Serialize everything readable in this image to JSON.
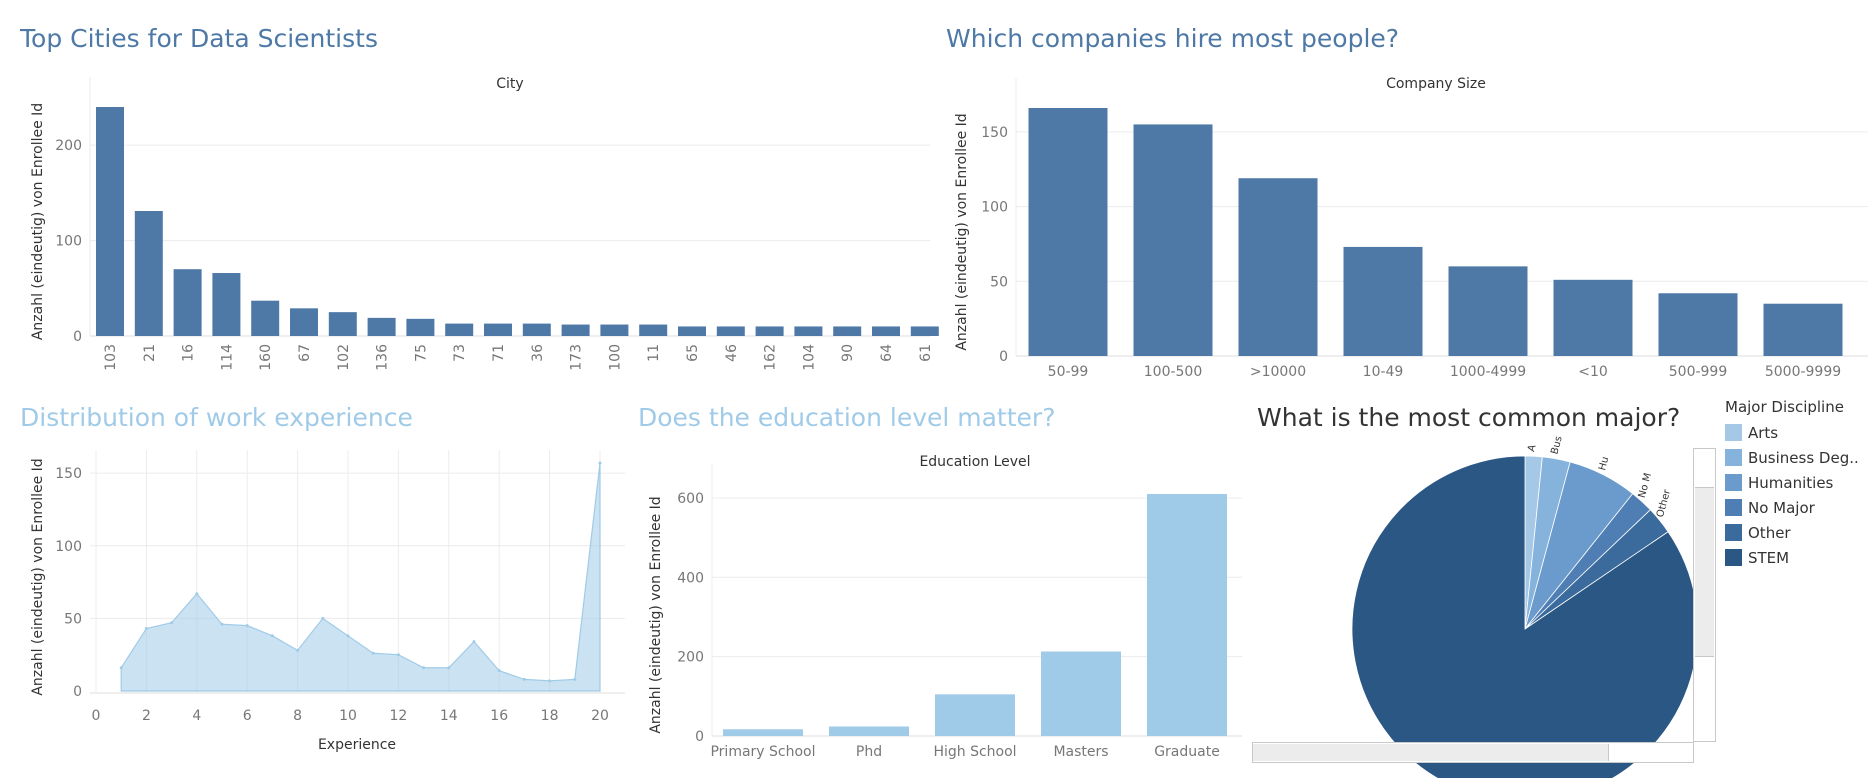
{
  "titles": {
    "cities": "Top Cities for Data Scientists",
    "companies": "Which companies hire most people?",
    "experience": "Distribution of work experience",
    "education": "Does the education level matter?",
    "major": "What is the most common major?"
  },
  "colors": {
    "dark_blue": "#4e79a7",
    "light_blue": "#a0cbe8",
    "grid": "#ececec",
    "axis_text": "#777777"
  },
  "legend": {
    "title": "Major Discipline",
    "items": [
      {
        "label": "Arts",
        "color": "#a4c8e6"
      },
      {
        "label": "Business Deg..",
        "color": "#86b3dc"
      },
      {
        "label": "Humanities",
        "color": "#6a9bcc"
      },
      {
        "label": "No Major",
        "color": "#4f7eb4"
      },
      {
        "label": "Other",
        "color": "#3b6a9c"
      },
      {
        "label": "STEM",
        "color": "#2b5784"
      }
    ]
  },
  "chart_data": [
    {
      "id": "cities",
      "type": "bar",
      "title": "City",
      "ylabel": "Anzahl (eindeutig) von Enrollee Id",
      "categories": [
        "103",
        "21",
        "16",
        "114",
        "160",
        "67",
        "102",
        "136",
        "75",
        "73",
        "71",
        "36",
        "173",
        "100",
        "11",
        "65",
        "46",
        "162",
        "104",
        "90",
        "64",
        "61"
      ],
      "values": [
        240,
        131,
        70,
        66,
        37,
        29,
        25,
        19,
        18,
        13,
        13,
        13,
        12,
        12,
        12,
        10,
        10,
        10,
        10,
        10,
        10,
        10
      ],
      "ylim": [
        0,
        240
      ],
      "yticks": [
        0,
        100,
        200
      ]
    },
    {
      "id": "companies",
      "type": "bar",
      "title": "Company Size",
      "ylabel": "Anzahl (eindeutig) von Enrollee Id",
      "categories": [
        "50-99",
        "100-500",
        ">10000",
        "10-49",
        "1000-4999",
        "<10",
        "500-999",
        "5000-9999"
      ],
      "values": [
        166,
        155,
        119,
        73,
        60,
        51,
        42,
        35
      ],
      "ylim": [
        0,
        166
      ],
      "yticks": [
        0,
        50,
        100,
        150
      ]
    },
    {
      "id": "experience",
      "type": "area",
      "xlabel": "Experience",
      "ylabel": "Anzahl (eindeutig) von Enrollee Id",
      "x": [
        1,
        2,
        3,
        4,
        5,
        6,
        7,
        8,
        9,
        10,
        11,
        12,
        13,
        14,
        15,
        16,
        17,
        18,
        19,
        20
      ],
      "values": [
        16,
        43,
        47,
        67,
        46,
        45,
        38,
        28,
        50,
        38,
        26,
        25,
        16,
        16,
        34,
        14,
        8,
        7,
        8,
        157
      ],
      "xlim": [
        0,
        20
      ],
      "ylim": [
        0,
        157
      ],
      "xticks": [
        0,
        2,
        4,
        6,
        8,
        10,
        12,
        14,
        16,
        18,
        20
      ],
      "yticks": [
        0,
        50,
        100,
        150
      ]
    },
    {
      "id": "education",
      "type": "bar",
      "title": "Education Level",
      "ylabel": "Anzahl (eindeutig) von Enrollee Id",
      "categories": [
        "Primary School",
        "Phd",
        "High School",
        "Masters",
        "Graduate"
      ],
      "values": [
        17,
        24,
        105,
        213,
        610
      ],
      "ylim": [
        0,
        610
      ],
      "yticks": [
        0,
        200,
        400,
        600
      ]
    },
    {
      "id": "major",
      "type": "pie",
      "categories": [
        "Arts",
        "Business Deg..",
        "Humanities",
        "No Major",
        "Other",
        "STEM"
      ],
      "slice_labels": [
        "A",
        "Bus",
        "Hu",
        "No M",
        "Other",
        ""
      ],
      "values": [
        1.6,
        2.6,
        6.5,
        2.2,
        2.6,
        84.5
      ]
    }
  ]
}
